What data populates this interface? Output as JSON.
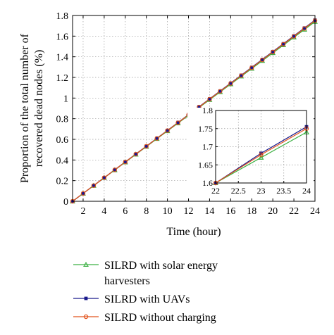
{
  "chart_data": {
    "type": "line",
    "xlabel": "Time (hour)",
    "ylabel": "Proportion of the total number of recovered dead nodes (%)",
    "ylabel_lines": [
      "Proportion of the total number of",
      "recovered dead nodes (%)"
    ],
    "xlim": [
      1,
      24
    ],
    "ylim": [
      0,
      1.8
    ],
    "xticks": [
      2,
      4,
      6,
      8,
      10,
      12,
      14,
      16,
      18,
      20,
      22,
      24
    ],
    "yticks": [
      0,
      0.2,
      0.4,
      0.6,
      0.8,
      1,
      1.2,
      1.4,
      1.6,
      1.8
    ],
    "xtick_labels": [
      "2",
      "4",
      "6",
      "8",
      "10",
      "12",
      "14",
      "16",
      "18",
      "20",
      "22",
      "24"
    ],
    "ytick_labels": [
      "0",
      "0.2",
      "0.4",
      "0.6",
      "0.8",
      "1",
      "1.2",
      "1.4",
      "1.6",
      "1.8"
    ],
    "grid": true,
    "legend_position": "bottom",
    "series": [
      {
        "name": "SILRD with solar energy harvesters",
        "name_lines": [
          "SILRD with solar energy",
          "harvesters"
        ],
        "color": "#3cb043",
        "marker": "triangle",
        "x": [
          1,
          24
        ],
        "y": [
          0,
          1.74
        ]
      },
      {
        "name": "SILRD with UAVs",
        "name_lines": [
          "SILRD with UAVs"
        ],
        "color": "#1a1a8c",
        "marker": "square",
        "x": [
          1,
          24
        ],
        "y": [
          0,
          1.755
        ]
      },
      {
        "name": "SILRD without charging",
        "name_lines": [
          "SILRD without charging"
        ],
        "color": "#e2531d",
        "marker": "circle",
        "x": [
          1,
          24
        ],
        "y": [
          0,
          1.75
        ]
      }
    ],
    "inset": {
      "xlim": [
        22,
        24
      ],
      "ylim": [
        1.6,
        1.8
      ],
      "xticks": [
        22,
        22.5,
        23,
        23.5,
        24
      ],
      "yticks": [
        1.6,
        1.65,
        1.7,
        1.75,
        1.8
      ],
      "xtick_labels": [
        "22",
        "22.5",
        "23",
        "23.5",
        "24"
      ],
      "ytick_labels": [
        "1.6",
        "1.65",
        "1.7",
        "1.75",
        "1.8"
      ],
      "series": [
        {
          "name": "SILRD with solar energy harvesters",
          "color": "#3cb043",
          "x": [
            22,
            23,
            24
          ],
          "y": [
            1.6,
            1.67,
            1.74
          ]
        },
        {
          "name": "SILRD with UAVs",
          "color": "#1a1a8c",
          "x": [
            22,
            23,
            24
          ],
          "y": [
            1.6,
            1.682,
            1.755
          ]
        },
        {
          "name": "SILRD without charging",
          "color": "#e2531d",
          "x": [
            22,
            23,
            24
          ],
          "y": [
            1.6,
            1.678,
            1.75
          ]
        }
      ]
    }
  }
}
